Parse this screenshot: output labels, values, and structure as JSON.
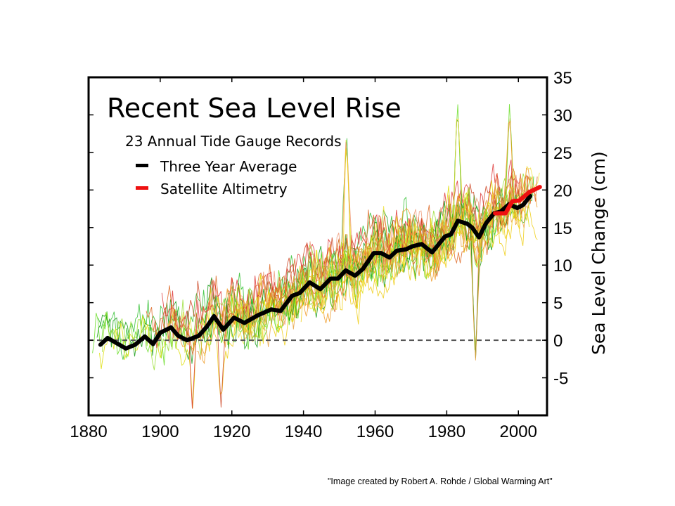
{
  "credit": "\"Image created by Robert A. Rohde / Global Warming Art\"",
  "chart_data": {
    "type": "line",
    "title": "Recent Sea Level Rise",
    "subtitle": "23 Annual Tide Gauge Records",
    "xlabel": "",
    "ylabel": "Sea Level Change (cm)",
    "xlim": [
      1880,
      2008
    ],
    "ylim": [
      -10,
      35
    ],
    "x_ticks": [
      1880,
      1900,
      1920,
      1940,
      1960,
      1980,
      2000
    ],
    "y_ticks": [
      -5,
      0,
      5,
      10,
      15,
      20,
      25,
      30,
      35
    ],
    "y_axis_side": "right",
    "zero_reference_line": {
      "value": 0,
      "style": "dashed",
      "color": "#555555"
    },
    "legend": {
      "placement": "top-left",
      "entries": [
        {
          "label": "Three Year Average",
          "color": "#000000"
        },
        {
          "label": "Satellite Altimetry",
          "color": "#ee1111"
        }
      ]
    },
    "series": [
      {
        "name": "Three Year Average",
        "color": "#000000",
        "x": [
          1883.3,
          1885.3,
          1887.5,
          1890.4,
          1893,
          1895.7,
          1898,
          1900,
          1903,
          1905,
          1907.5,
          1910.8,
          1913,
          1915,
          1917.6,
          1920.6,
          1923.5,
          1927.2,
          1931,
          1933.6,
          1936.8,
          1939,
          1941.7,
          1944.7,
          1947.6,
          1949.6,
          1951.8,
          1954.4,
          1956.6,
          1959.6,
          1961.7,
          1964,
          1966,
          1968.6,
          1970.4,
          1973,
          1975.9,
          1979.5,
          1981.2,
          1983.1,
          1985.7,
          1987.1,
          1989,
          1991,
          1993.2,
          1995,
          1997.4,
          1999.7,
          2001.3,
          2003.3
        ],
        "values": [
          -0.6,
          0.3,
          -0.3,
          -1.1,
          -0.6,
          0.5,
          -0.5,
          1.0,
          1.7,
          0.6,
          0.0,
          0.6,
          1.8,
          3.2,
          1.4,
          3.0,
          2.3,
          3.3,
          4.1,
          3.9,
          5.9,
          6.3,
          7.7,
          6.8,
          8.2,
          8.2,
          9.3,
          8.6,
          9.5,
          11.6,
          11.6,
          11.0,
          11.9,
          12.1,
          12.5,
          12.8,
          11.7,
          13.8,
          14.1,
          15.9,
          15.5,
          15.0,
          13.7,
          15.6,
          16.9,
          17.1,
          18.1,
          17.6,
          18.0,
          19.2
        ]
      },
      {
        "name": "Satellite Altimetry",
        "color": "#ee1111",
        "x": [
          1993.5,
          1996.4,
          1998.3,
          2000.3,
          2003,
          2006
        ],
        "values": [
          16.9,
          16.9,
          18.5,
          18.6,
          19.7,
          20.4
        ]
      }
    ],
    "tide_gauge_records": {
      "count": 23,
      "colors": [
        "#2fbf2f",
        "#66dd22",
        "#119911",
        "#99dd33",
        "#dddd00",
        "#eecc11",
        "#f0e040",
        "#ee9922",
        "#e8a040",
        "#dd6622",
        "#dd3333",
        "#cc4422",
        "#ee9977"
      ],
      "notable_extremes": [
        {
          "year": 1952,
          "value": 28.5
        },
        {
          "year": 1983,
          "value": 32.5
        },
        {
          "year": 1997.5,
          "value": 31.5
        },
        {
          "year": 1988,
          "value": -3.3
        },
        {
          "year": 1909,
          "value": -9.5
        },
        {
          "year": 1917,
          "value": -9
        }
      ]
    }
  }
}
